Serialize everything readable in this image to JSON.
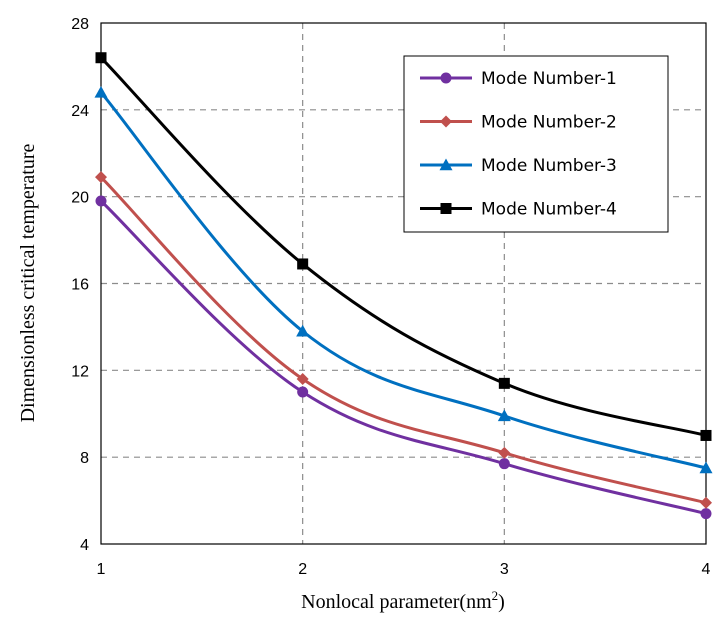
{
  "chart_data": {
    "type": "line",
    "title": "",
    "xlabel": "Nonlocal parameter(nm",
    "xlabel_sup": "2",
    "xlabel_close": ")",
    "ylabel": "Dimensionless critical temperature",
    "x": [
      1,
      2,
      3,
      4
    ],
    "x_ticks": [
      "1",
      "2",
      "3",
      "4"
    ],
    "y_ticks": [
      "4",
      "8",
      "12",
      "16",
      "20",
      "24",
      "28"
    ],
    "xlim": [
      1,
      4
    ],
    "ylim": [
      4,
      28
    ],
    "grid": true,
    "legend_position": "top-right",
    "series": [
      {
        "name": "Mode Number-1",
        "color": "#7030A0",
        "marker": "circle",
        "values": [
          19.8,
          11.0,
          7.7,
          5.4
        ]
      },
      {
        "name": "Mode Number-2",
        "color": "#C0504D",
        "marker": "diamond",
        "values": [
          20.9,
          11.6,
          8.2,
          5.9
        ]
      },
      {
        "name": "Mode Number-3",
        "color": "#0070C0",
        "marker": "triangle",
        "values": [
          24.8,
          13.8,
          9.9,
          7.5
        ]
      },
      {
        "name": "Mode Number-4",
        "color": "#000000",
        "marker": "square",
        "values": [
          26.4,
          16.9,
          11.4,
          9.0
        ]
      }
    ]
  }
}
